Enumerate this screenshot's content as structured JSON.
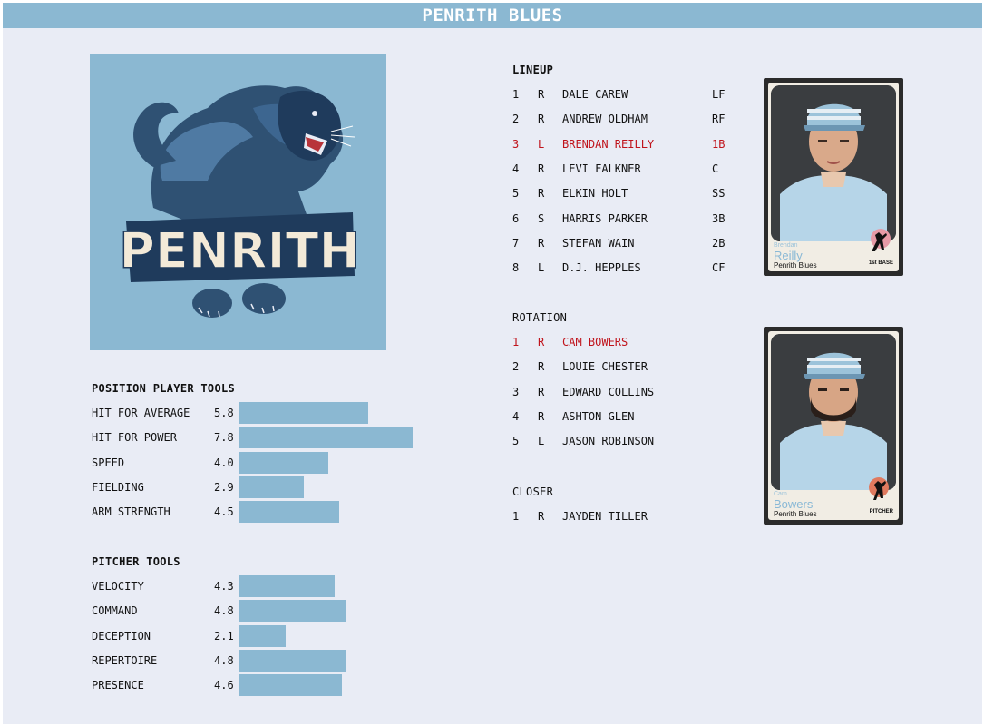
{
  "header": {
    "title": "PENRITH BLUES"
  },
  "logo": {
    "wordmark": "PENRITH"
  },
  "position_tools": {
    "title": "POSITION PLAYER TOOLS",
    "items": [
      {
        "name": "HIT FOR AVERAGE",
        "value": "5.8"
      },
      {
        "name": "HIT FOR POWER",
        "value": "7.8"
      },
      {
        "name": "SPEED",
        "value": "4.0"
      },
      {
        "name": "FIELDING",
        "value": "2.9"
      },
      {
        "name": "ARM STRENGTH",
        "value": "4.5"
      }
    ]
  },
  "pitcher_tools": {
    "title": "PITCHER TOOLS",
    "items": [
      {
        "name": "VELOCITY",
        "value": "4.3"
      },
      {
        "name": "COMMAND",
        "value": "4.8"
      },
      {
        "name": "DECEPTION",
        "value": "2.1"
      },
      {
        "name": "REPERTOIRE",
        "value": "4.8"
      },
      {
        "name": "PRESENCE",
        "value": "4.6"
      }
    ]
  },
  "lineup": {
    "title": "LINEUP",
    "rows": [
      {
        "num": "1",
        "hand": "R",
        "name": "DALE CAREW",
        "pos": "LF",
        "highlight": false
      },
      {
        "num": "2",
        "hand": "R",
        "name": "ANDREW OLDHAM",
        "pos": "RF",
        "highlight": false
      },
      {
        "num": "3",
        "hand": "L",
        "name": "BRENDAN REILLY",
        "pos": "1B",
        "highlight": true
      },
      {
        "num": "4",
        "hand": "R",
        "name": "LEVI FALKNER",
        "pos": "C",
        "highlight": false
      },
      {
        "num": "5",
        "hand": "R",
        "name": "ELKIN HOLT",
        "pos": "SS",
        "highlight": false
      },
      {
        "num": "6",
        "hand": "S",
        "name": "HARRIS PARKER",
        "pos": "3B",
        "highlight": false
      },
      {
        "num": "7",
        "hand": "R",
        "name": "STEFAN WAIN",
        "pos": "2B",
        "highlight": false
      },
      {
        "num": "8",
        "hand": "L",
        "name": "D.J. HEPPLES",
        "pos": "CF",
        "highlight": false
      }
    ]
  },
  "rotation": {
    "title": "ROTATION",
    "rows": [
      {
        "num": "1",
        "hand": "R",
        "name": "CAM BOWERS",
        "highlight": true
      },
      {
        "num": "2",
        "hand": "R",
        "name": "LOUIE CHESTER",
        "highlight": false
      },
      {
        "num": "3",
        "hand": "R",
        "name": "EDWARD COLLINS",
        "highlight": false
      },
      {
        "num": "4",
        "hand": "R",
        "name": "ASHTON GLEN",
        "highlight": false
      },
      {
        "num": "5",
        "hand": "L",
        "name": "JASON ROBINSON",
        "highlight": false
      }
    ]
  },
  "closer": {
    "title": "CLOSER",
    "rows": [
      {
        "num": "1",
        "hand": "R",
        "name": "JAYDEN TILLER"
      }
    ]
  },
  "cards": [
    {
      "first": "Brendan",
      "last": "Reilly",
      "team": "Penrith Blues",
      "position": "1st BASE"
    },
    {
      "first": "Cam",
      "last": "Bowers",
      "team": "Penrith Blues",
      "position": "PITCHER"
    }
  ],
  "colors": {
    "accent": "#8bb8d2",
    "background": "#e9ecf5",
    "highlight": "#c0141c"
  }
}
